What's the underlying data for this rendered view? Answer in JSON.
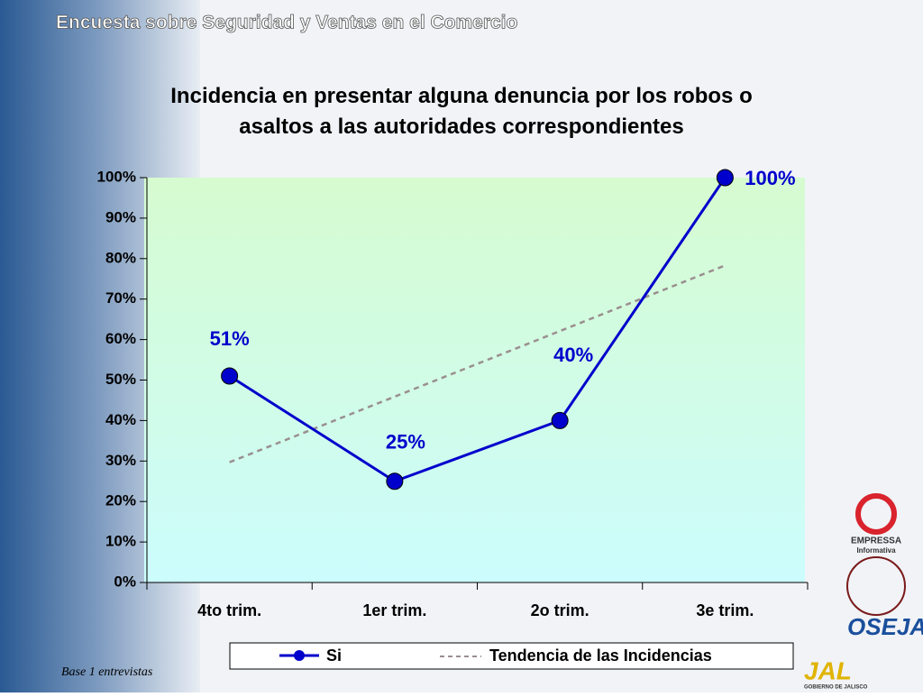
{
  "header": {
    "title": "Encuesta sobre Seguridad y Ventas en el Comercio"
  },
  "chart_data": {
    "type": "line",
    "title": "Incidencia en presentar alguna denuncia por los robos o asaltos a las autoridades correspondientes",
    "categories": [
      "4to trim.",
      "1er trim.",
      "2o trim.",
      "3e trim."
    ],
    "series": [
      {
        "name": "Si",
        "color": "#0000cc",
        "values": [
          51,
          25,
          40,
          100
        ],
        "value_labels": [
          "51%",
          "25%",
          "40%",
          "100%"
        ]
      },
      {
        "name": "Tendencia de las Incidencias",
        "color": "#9a8f8f",
        "values": [
          29.7,
          45.9,
          62.1,
          78.3
        ]
      }
    ],
    "ylim": [
      0,
      100
    ],
    "yticks": [
      {
        "value": 0,
        "label": "0%"
      },
      {
        "value": 10,
        "label": "10%"
      },
      {
        "value": 20,
        "label": "20%"
      },
      {
        "value": 30,
        "label": "30%"
      },
      {
        "value": 40,
        "label": "40%"
      },
      {
        "value": 50,
        "label": "50%"
      },
      {
        "value": 60,
        "label": "60%"
      },
      {
        "value": 70,
        "label": "70%"
      },
      {
        "value": 80,
        "label": "80%"
      },
      {
        "value": 90,
        "label": "90%"
      },
      {
        "value": 100,
        "label": "100%"
      }
    ],
    "legend": "bottom"
  },
  "footnote": "Base 1 entrevistas",
  "logos": [
    "EMPRESSA",
    "Informativa",
    "OSEJAL",
    "JAL",
    "GOBIERNO DE JALISCO"
  ]
}
